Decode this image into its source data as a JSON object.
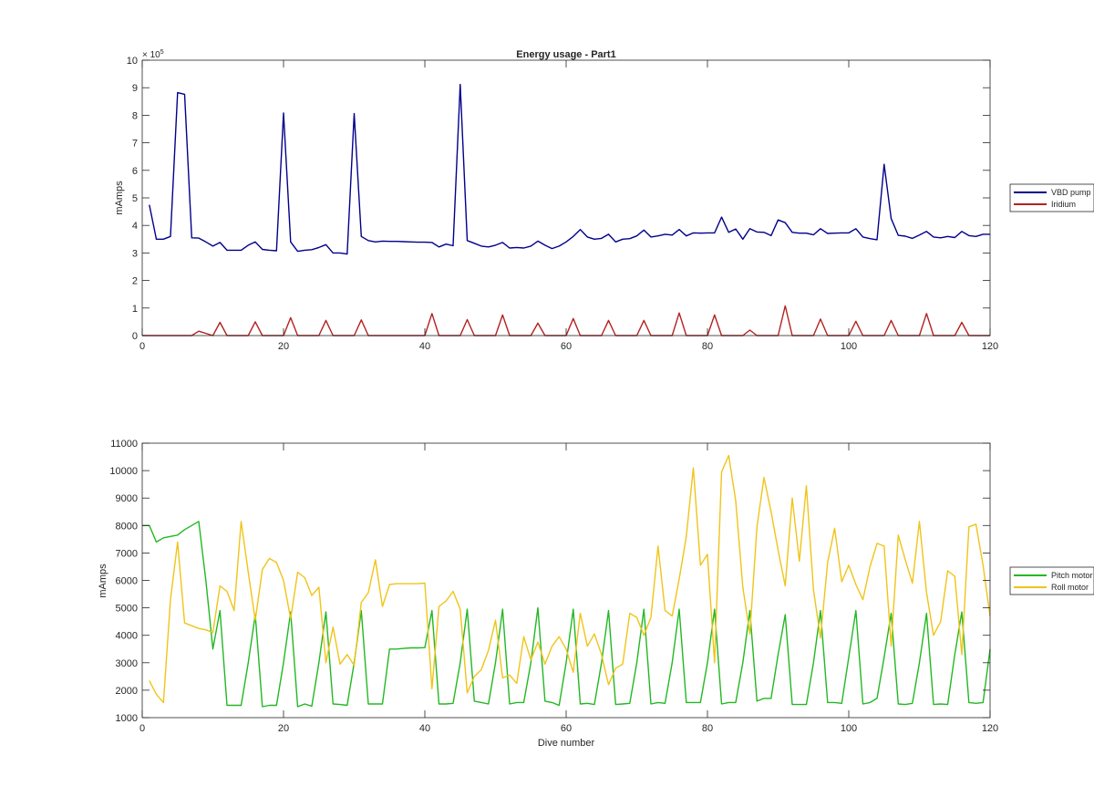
{
  "figure": {
    "title": "Energy usage - Part1"
  },
  "chart_data": [
    {
      "type": "line",
      "title": "Energy usage - Part1",
      "xlabel": "",
      "ylabel": "mAmps",
      "xlim": [
        0,
        120
      ],
      "ylim": [
        0,
        1000000
      ],
      "x_ticks": [
        0,
        20,
        40,
        60,
        80,
        100,
        120
      ],
      "y_ticks": [
        0,
        1,
        2,
        3,
        4,
        5,
        6,
        7,
        8,
        9,
        10
      ],
      "y_exponent_label": "× 10",
      "y_exponent_power": "5",
      "y_tick_scale": 100000,
      "grid": false,
      "legend": "outside-right",
      "series": [
        {
          "name": "VBD pump",
          "color": "#00008B",
          "x": [
            1,
            2,
            3,
            4,
            5,
            6,
            7,
            8,
            9,
            10,
            11,
            12,
            13,
            14,
            15,
            16,
            17,
            18,
            19,
            20,
            21,
            22,
            23,
            24,
            25,
            26,
            27,
            28,
            29,
            30,
            31,
            32,
            33,
            34,
            35,
            36,
            37,
            38,
            39,
            40,
            41,
            42,
            43,
            44,
            45,
            46,
            47,
            48,
            49,
            50,
            51,
            52,
            53,
            54,
            55,
            56,
            57,
            58,
            59,
            60,
            61,
            62,
            63,
            64,
            65,
            66,
            67,
            68,
            69,
            70,
            71,
            72,
            73,
            74,
            75,
            76,
            77,
            78,
            79,
            80,
            81,
            82,
            83,
            84,
            85,
            86,
            87,
            88,
            89,
            90,
            91,
            92,
            93,
            94,
            95,
            96,
            97,
            98,
            99,
            100,
            101,
            102,
            103,
            104,
            105,
            106,
            107,
            108,
            109,
            110,
            111,
            112,
            113,
            114,
            115,
            116,
            117,
            118,
            119,
            120
          ],
          "values": [
            475000,
            350000,
            350000,
            360000,
            882000,
            876000,
            355000,
            354000,
            340000,
            325000,
            338000,
            310000,
            310000,
            310000,
            328000,
            340000,
            313000,
            310000,
            308000,
            808000,
            340000,
            306000,
            310000,
            312000,
            320000,
            330000,
            300000,
            300000,
            296000,
            806000,
            360000,
            345000,
            340000,
            343000,
            342000,
            342000,
            341000,
            340000,
            339000,
            339000,
            338000,
            322000,
            332000,
            326000,
            912000,
            345000,
            335000,
            325000,
            322000,
            328000,
            338000,
            318000,
            320000,
            318000,
            325000,
            343000,
            328000,
            316000,
            325000,
            340000,
            360000,
            385000,
            358000,
            350000,
            353000,
            368000,
            340000,
            350000,
            352000,
            362000,
            383000,
            358000,
            362000,
            368000,
            365000,
            385000,
            362000,
            373000,
            372000,
            373000,
            373000,
            430000,
            375000,
            387000,
            350000,
            388000,
            376000,
            375000,
            363000,
            420000,
            410000,
            375000,
            372000,
            372000,
            366000,
            388000,
            371000,
            372000,
            373000,
            373000,
            388000,
            358000,
            352000,
            348000,
            622000,
            425000,
            364000,
            361000,
            353000,
            365000,
            378000,
            358000,
            355000,
            360000,
            356000,
            378000,
            363000,
            360000,
            368000,
            368000
          ]
        },
        {
          "name": "Iridium",
          "color": "#B22222",
          "x": [
            0,
            7,
            8,
            10,
            11,
            12,
            15,
            16,
            17,
            20,
            21,
            22,
            25,
            26,
            27,
            30,
            31,
            32,
            40,
            41,
            42,
            45,
            46,
            47,
            50,
            51,
            52,
            55,
            56,
            57,
            60,
            61,
            62,
            65,
            66,
            67,
            70,
            71,
            72,
            75,
            76,
            77,
            80,
            81,
            82,
            85,
            86,
            87,
            90,
            91,
            92,
            95,
            96,
            97,
            100,
            101,
            102,
            105,
            106,
            107,
            110,
            111,
            112,
            115,
            116,
            117,
            120
          ],
          "values": [
            0,
            0,
            16000,
            0,
            48000,
            0,
            0,
            50000,
            0,
            0,
            65000,
            0,
            0,
            55000,
            0,
            0,
            57000,
            0,
            0,
            80000,
            0,
            0,
            58000,
            0,
            0,
            75000,
            0,
            0,
            45000,
            0,
            0,
            62000,
            0,
            0,
            55000,
            0,
            0,
            55000,
            0,
            0,
            82000,
            0,
            0,
            75000,
            0,
            0,
            20000,
            0,
            0,
            108000,
            0,
            0,
            60000,
            0,
            0,
            52000,
            0,
            0,
            55000,
            0,
            0,
            80000,
            0,
            0,
            48000,
            0,
            0
          ]
        }
      ]
    },
    {
      "type": "line",
      "title": "",
      "xlabel": "Dive number",
      "ylabel": "mAmps",
      "xlim": [
        0,
        120
      ],
      "ylim": [
        1000,
        11000
      ],
      "x_ticks": [
        0,
        20,
        40,
        60,
        80,
        100,
        120
      ],
      "y_ticks": [
        1000,
        2000,
        3000,
        4000,
        5000,
        6000,
        7000,
        8000,
        9000,
        10000,
        11000
      ],
      "grid": false,
      "legend": "outside-right",
      "series": [
        {
          "name": "Pitch motor",
          "color": "#22B822",
          "x": [
            0,
            1,
            2,
            3,
            4,
            5,
            6,
            7,
            8,
            9,
            10,
            11,
            12,
            13,
            14,
            15,
            16,
            17,
            18,
            19,
            20,
            21,
            22,
            23,
            24,
            25,
            26,
            27,
            28,
            29,
            30,
            31,
            32,
            33,
            34,
            35,
            36,
            37,
            38,
            39,
            40,
            41,
            42,
            43,
            44,
            45,
            46,
            47,
            48,
            49,
            50,
            51,
            52,
            53,
            54,
            55,
            56,
            57,
            58,
            59,
            60,
            61,
            62,
            63,
            64,
            65,
            66,
            67,
            68,
            69,
            70,
            71,
            72,
            73,
            74,
            75,
            76,
            77,
            78,
            79,
            80,
            81,
            82,
            83,
            84,
            85,
            86,
            87,
            88,
            89,
            90,
            91,
            92,
            93,
            94,
            95,
            96,
            97,
            98,
            99,
            100,
            101,
            102,
            103,
            104,
            105,
            106,
            107,
            108,
            109,
            110,
            111,
            112,
            113,
            114,
            115,
            116,
            117,
            118,
            119,
            120
          ],
          "values": [
            8000,
            8000,
            7400,
            7550,
            7600,
            7650,
            7850,
            8000,
            8150,
            6000,
            3500,
            4900,
            1450,
            1450,
            1450,
            3000,
            4750,
            1400,
            1450,
            1450,
            3000,
            4850,
            1400,
            1500,
            1420,
            3000,
            4850,
            1500,
            1480,
            1450,
            3000,
            4900,
            1500,
            1500,
            1500,
            3500,
            3500,
            3520,
            3540,
            3540,
            3550,
            4900,
            1500,
            1500,
            1520,
            3000,
            4950,
            1600,
            1550,
            1500,
            3000,
            4950,
            1500,
            1550,
            1550,
            3000,
            5000,
            1600,
            1550,
            1450,
            3000,
            4950,
            1500,
            1520,
            1480,
            3000,
            4900,
            1480,
            1500,
            1520,
            3000,
            4950,
            1500,
            1550,
            1520,
            3000,
            4950,
            1550,
            1550,
            1550,
            3000,
            4950,
            1500,
            1550,
            1550,
            3000,
            4900,
            1600,
            1700,
            1700,
            3300,
            4750,
            1480,
            1480,
            1480,
            3000,
            4900,
            1550,
            1550,
            1520,
            3200,
            4900,
            1500,
            1550,
            1700,
            3200,
            4800,
            1500,
            1480,
            1520,
            3000,
            4800,
            1480,
            1500,
            1480,
            3300,
            4850,
            1550,
            1520,
            1550,
            3500
          ]
        },
        {
          "name": "Roll motor",
          "color": "#F0C419",
          "x": [
            1,
            2,
            3,
            4,
            5,
            6,
            7,
            8,
            9,
            10,
            11,
            12,
            13,
            14,
            15,
            16,
            17,
            18,
            19,
            20,
            21,
            22,
            23,
            24,
            25,
            26,
            27,
            28,
            29,
            30,
            31,
            32,
            33,
            34,
            35,
            36,
            37,
            38,
            39,
            40,
            41,
            42,
            43,
            44,
            45,
            46,
            47,
            48,
            49,
            50,
            51,
            52,
            53,
            54,
            55,
            56,
            57,
            58,
            59,
            60,
            61,
            62,
            63,
            64,
            65,
            66,
            67,
            68,
            69,
            70,
            71,
            72,
            73,
            74,
            75,
            76,
            77,
            78,
            79,
            80,
            81,
            82,
            83,
            84,
            85,
            86,
            87,
            88,
            89,
            90,
            91,
            92,
            93,
            94,
            95,
            96,
            97,
            98,
            99,
            100,
            101,
            102,
            103,
            104,
            105,
            106,
            107,
            108,
            109,
            110,
            111,
            112,
            113,
            114,
            115,
            116,
            117,
            118,
            119,
            120
          ],
          "values": [
            2350,
            1850,
            1550,
            5300,
            7400,
            4450,
            4350,
            4250,
            4200,
            4100,
            5800,
            5600,
            4900,
            8150,
            6300,
            4550,
            6400,
            6800,
            6650,
            6000,
            4600,
            6300,
            6100,
            5450,
            5750,
            3000,
            4300,
            2950,
            3300,
            2900,
            5200,
            5550,
            6750,
            5050,
            5850,
            5880,
            5880,
            5880,
            5880,
            5900,
            2050,
            5050,
            5250,
            5600,
            4950,
            1900,
            2500,
            2750,
            3450,
            4550,
            2450,
            2550,
            2250,
            3950,
            3100,
            3750,
            2950,
            3600,
            3950,
            3500,
            2650,
            4800,
            3600,
            4050,
            3300,
            2200,
            2800,
            2950,
            4800,
            4650,
            4000,
            4650,
            7250,
            4900,
            4700,
            6050,
            7600,
            10100,
            6550,
            6950,
            3000,
            9950,
            10550,
            8900,
            5750,
            4050,
            7950,
            9750,
            8500,
            7100,
            5800,
            9000,
            6700,
            9450,
            5650,
            3900,
            6650,
            7900,
            5950,
            6550,
            5850,
            5300,
            6500,
            7350,
            7250,
            3600,
            7650,
            6750,
            5900,
            8150,
            5550,
            4000,
            4500,
            6350,
            6150,
            3300,
            7950,
            8050,
            6550,
            4700
          ]
        }
      ]
    }
  ]
}
